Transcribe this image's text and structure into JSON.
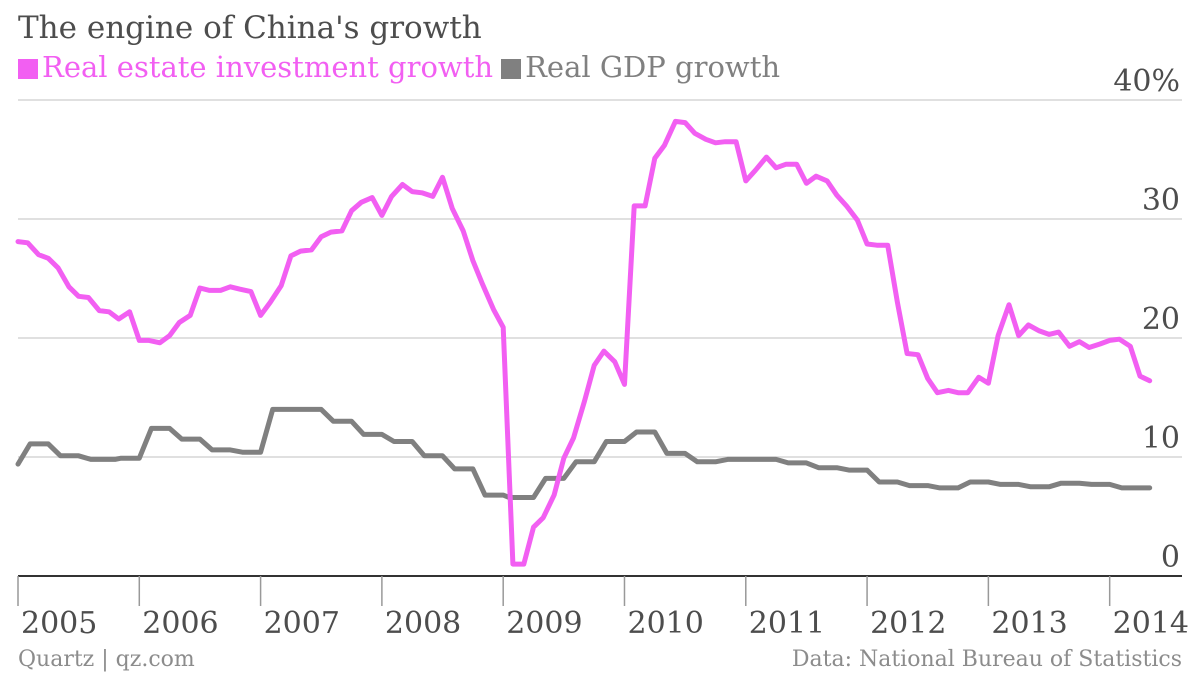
{
  "header": {
    "title": "The engine of China's growth"
  },
  "footer": {
    "source_left": "Quartz | qz.com",
    "source_right": "Data: National Bureau of Statistics"
  },
  "colors": {
    "real_estate": "#f25ff2",
    "gdp": "#808080",
    "grid": "#e0e0e0",
    "axis": "#333333",
    "text": "#4d4d4d"
  },
  "chart_data": {
    "type": "line",
    "title": "The engine of China's growth",
    "ylim": [
      0,
      40
    ],
    "y_ticks": [
      {
        "value": 0,
        "label": "0"
      },
      {
        "value": 10,
        "label": "10"
      },
      {
        "value": 20,
        "label": "20"
      },
      {
        "value": 30,
        "label": "30"
      },
      {
        "value": 40,
        "label": "40%"
      }
    ],
    "x_range": [
      2005.0,
      2014.25
    ],
    "x_ticks": [
      {
        "value": 2005,
        "label": "2005"
      },
      {
        "value": 2006,
        "label": "2006"
      },
      {
        "value": 2007,
        "label": "2007"
      },
      {
        "value": 2008,
        "label": "2008"
      },
      {
        "value": 2009,
        "label": "2009"
      },
      {
        "value": 2010,
        "label": "2010"
      },
      {
        "value": 2011,
        "label": "2011"
      },
      {
        "value": 2012,
        "label": "2012"
      },
      {
        "value": 2013,
        "label": "2013"
      },
      {
        "value": 2014,
        "label": "2014"
      }
    ],
    "grid": true,
    "legend_position": "top-left",
    "series": [
      {
        "name": "Real estate investment growth",
        "color": "#f25ff2",
        "points": [
          [
            2005.0,
            28.1
          ],
          [
            2005.08,
            28.0
          ],
          [
            2005.17,
            27.0
          ],
          [
            2005.25,
            26.7
          ],
          [
            2005.33,
            25.9
          ],
          [
            2005.42,
            24.3
          ],
          [
            2005.5,
            23.5
          ],
          [
            2005.58,
            23.4
          ],
          [
            2005.67,
            22.3
          ],
          [
            2005.75,
            22.2
          ],
          [
            2005.83,
            21.6
          ],
          [
            2005.92,
            22.2
          ],
          [
            2006.0,
            19.8
          ],
          [
            2006.08,
            19.8
          ],
          [
            2006.17,
            19.6
          ],
          [
            2006.25,
            20.2
          ],
          [
            2006.33,
            21.3
          ],
          [
            2006.42,
            21.9
          ],
          [
            2006.5,
            24.2
          ],
          [
            2006.58,
            24.0
          ],
          [
            2006.67,
            24.0
          ],
          [
            2006.75,
            24.3
          ],
          [
            2006.83,
            24.1
          ],
          [
            2006.92,
            23.9
          ],
          [
            2007.0,
            21.9
          ],
          [
            2007.08,
            23.0
          ],
          [
            2007.17,
            24.4
          ],
          [
            2007.25,
            26.9
          ],
          [
            2007.33,
            27.3
          ],
          [
            2007.42,
            27.4
          ],
          [
            2007.5,
            28.5
          ],
          [
            2007.58,
            28.9
          ],
          [
            2007.67,
            29.0
          ],
          [
            2007.75,
            30.7
          ],
          [
            2007.83,
            31.4
          ],
          [
            2007.92,
            31.8
          ],
          [
            2008.0,
            30.3
          ],
          [
            2008.08,
            31.9
          ],
          [
            2008.17,
            32.9
          ],
          [
            2008.25,
            32.3
          ],
          [
            2008.33,
            32.2
          ],
          [
            2008.42,
            31.9
          ],
          [
            2008.5,
            33.5
          ],
          [
            2008.58,
            30.9
          ],
          [
            2008.67,
            29.0
          ],
          [
            2008.75,
            26.5
          ],
          [
            2008.83,
            24.5
          ],
          [
            2008.92,
            22.4
          ],
          [
            2009.0,
            20.9
          ],
          [
            2009.08,
            1.0
          ],
          [
            2009.17,
            1.0
          ],
          [
            2009.25,
            4.1
          ],
          [
            2009.33,
            4.9
          ],
          [
            2009.42,
            6.8
          ],
          [
            2009.5,
            9.9
          ],
          [
            2009.58,
            11.6
          ],
          [
            2009.67,
            14.7
          ],
          [
            2009.75,
            17.7
          ],
          [
            2009.83,
            18.9
          ],
          [
            2009.92,
            18.0
          ],
          [
            2010.0,
            16.1
          ],
          [
            2010.08,
            31.1
          ],
          [
            2010.17,
            31.1
          ],
          [
            2010.25,
            35.1
          ],
          [
            2010.33,
            36.2
          ],
          [
            2010.42,
            38.2
          ],
          [
            2010.5,
            38.1
          ],
          [
            2010.58,
            37.2
          ],
          [
            2010.67,
            36.7
          ],
          [
            2010.75,
            36.4
          ],
          [
            2010.83,
            36.5
          ],
          [
            2010.92,
            36.5
          ],
          [
            2011.0,
            33.2
          ],
          [
            2011.08,
            34.1
          ],
          [
            2011.17,
            35.2
          ],
          [
            2011.25,
            34.3
          ],
          [
            2011.33,
            34.6
          ],
          [
            2011.42,
            34.6
          ],
          [
            2011.5,
            33.0
          ],
          [
            2011.58,
            33.6
          ],
          [
            2011.67,
            33.2
          ],
          [
            2011.75,
            32.0
          ],
          [
            2011.83,
            31.1
          ],
          [
            2011.92,
            29.9
          ],
          [
            2012.0,
            27.9
          ],
          [
            2012.08,
            27.8
          ],
          [
            2012.17,
            27.8
          ],
          [
            2012.25,
            23.0
          ],
          [
            2012.33,
            18.7
          ],
          [
            2012.42,
            18.6
          ],
          [
            2012.5,
            16.6
          ],
          [
            2012.58,
            15.4
          ],
          [
            2012.67,
            15.6
          ],
          [
            2012.75,
            15.4
          ],
          [
            2012.83,
            15.4
          ],
          [
            2012.92,
            16.7
          ],
          [
            2013.0,
            16.2
          ],
          [
            2013.08,
            20.2
          ],
          [
            2013.17,
            22.8
          ],
          [
            2013.25,
            20.2
          ],
          [
            2013.33,
            21.1
          ],
          [
            2013.42,
            20.6
          ],
          [
            2013.5,
            20.3
          ],
          [
            2013.58,
            20.5
          ],
          [
            2013.67,
            19.3
          ],
          [
            2013.75,
            19.7
          ],
          [
            2013.83,
            19.2
          ],
          [
            2013.92,
            19.5
          ],
          [
            2014.0,
            19.8
          ],
          [
            2014.08,
            19.9
          ],
          [
            2014.17,
            19.3
          ],
          [
            2014.25,
            16.8
          ],
          [
            2014.33,
            16.4
          ]
        ]
      },
      {
        "name": "Real GDP growth",
        "color": "#808080",
        "points": [
          [
            2005.0,
            9.4
          ],
          [
            2005.1,
            11.1
          ],
          [
            2005.25,
            11.1
          ],
          [
            2005.35,
            10.1
          ],
          [
            2005.5,
            10.1
          ],
          [
            2005.6,
            9.8
          ],
          [
            2005.8,
            9.8
          ],
          [
            2005.85,
            9.9
          ],
          [
            2006.0,
            9.9
          ],
          [
            2006.1,
            12.4
          ],
          [
            2006.25,
            12.4
          ],
          [
            2006.35,
            11.5
          ],
          [
            2006.5,
            11.5
          ],
          [
            2006.6,
            10.6
          ],
          [
            2006.75,
            10.6
          ],
          [
            2006.85,
            10.4
          ],
          [
            2007.0,
            10.4
          ],
          [
            2007.1,
            14.0
          ],
          [
            2007.5,
            14.0
          ],
          [
            2007.6,
            13.0
          ],
          [
            2007.75,
            13.0
          ],
          [
            2007.85,
            11.9
          ],
          [
            2008.0,
            11.9
          ],
          [
            2008.1,
            11.3
          ],
          [
            2008.25,
            11.3
          ],
          [
            2008.35,
            10.1
          ],
          [
            2008.5,
            10.1
          ],
          [
            2008.6,
            9.0
          ],
          [
            2008.75,
            9.0
          ],
          [
            2008.85,
            6.8
          ],
          [
            2009.0,
            6.8
          ],
          [
            2009.05,
            6.6
          ],
          [
            2009.25,
            6.6
          ],
          [
            2009.35,
            8.2
          ],
          [
            2009.5,
            8.2
          ],
          [
            2009.6,
            9.6
          ],
          [
            2009.75,
            9.6
          ],
          [
            2009.85,
            11.3
          ],
          [
            2010.0,
            11.3
          ],
          [
            2010.1,
            12.1
          ],
          [
            2010.25,
            12.1
          ],
          [
            2010.35,
            10.3
          ],
          [
            2010.5,
            10.3
          ],
          [
            2010.6,
            9.6
          ],
          [
            2010.75,
            9.6
          ],
          [
            2010.85,
            9.8
          ],
          [
            2011.25,
            9.8
          ],
          [
            2011.35,
            9.5
          ],
          [
            2011.5,
            9.5
          ],
          [
            2011.6,
            9.1
          ],
          [
            2011.75,
            9.1
          ],
          [
            2011.85,
            8.9
          ],
          [
            2012.0,
            8.9
          ],
          [
            2012.1,
            7.9
          ],
          [
            2012.25,
            7.9
          ],
          [
            2012.35,
            7.6
          ],
          [
            2012.5,
            7.6
          ],
          [
            2012.6,
            7.4
          ],
          [
            2012.75,
            7.4
          ],
          [
            2012.85,
            7.9
          ],
          [
            2013.0,
            7.9
          ],
          [
            2013.1,
            7.7
          ],
          [
            2013.25,
            7.7
          ],
          [
            2013.35,
            7.5
          ],
          [
            2013.5,
            7.5
          ],
          [
            2013.6,
            7.8
          ],
          [
            2013.75,
            7.8
          ],
          [
            2013.85,
            7.7
          ],
          [
            2014.0,
            7.7
          ],
          [
            2014.1,
            7.4
          ],
          [
            2014.33,
            7.4
          ]
        ]
      }
    ]
  }
}
